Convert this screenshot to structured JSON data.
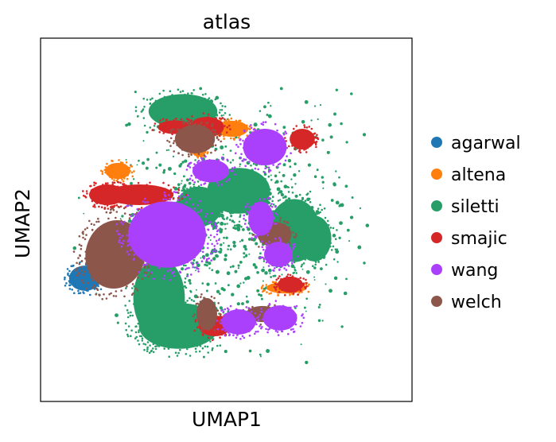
{
  "chart_data": {
    "type": "scatter",
    "title": "atlas",
    "xlabel": "UMAP1",
    "ylabel": "UMAP2",
    "xticks": [],
    "yticks": [],
    "grid": false,
    "legend_position": "right",
    "series": [
      {
        "name": "agarwal",
        "color": "#1f77b4"
      },
      {
        "name": "altena",
        "color": "#ff7f0e"
      },
      {
        "name": "siletti",
        "color": "#279e68"
      },
      {
        "name": "smajic",
        "color": "#d62728"
      },
      {
        "name": "wang",
        "color": "#aa40fc"
      },
      {
        "name": "welch",
        "color": "#8c564b"
      }
    ]
  }
}
